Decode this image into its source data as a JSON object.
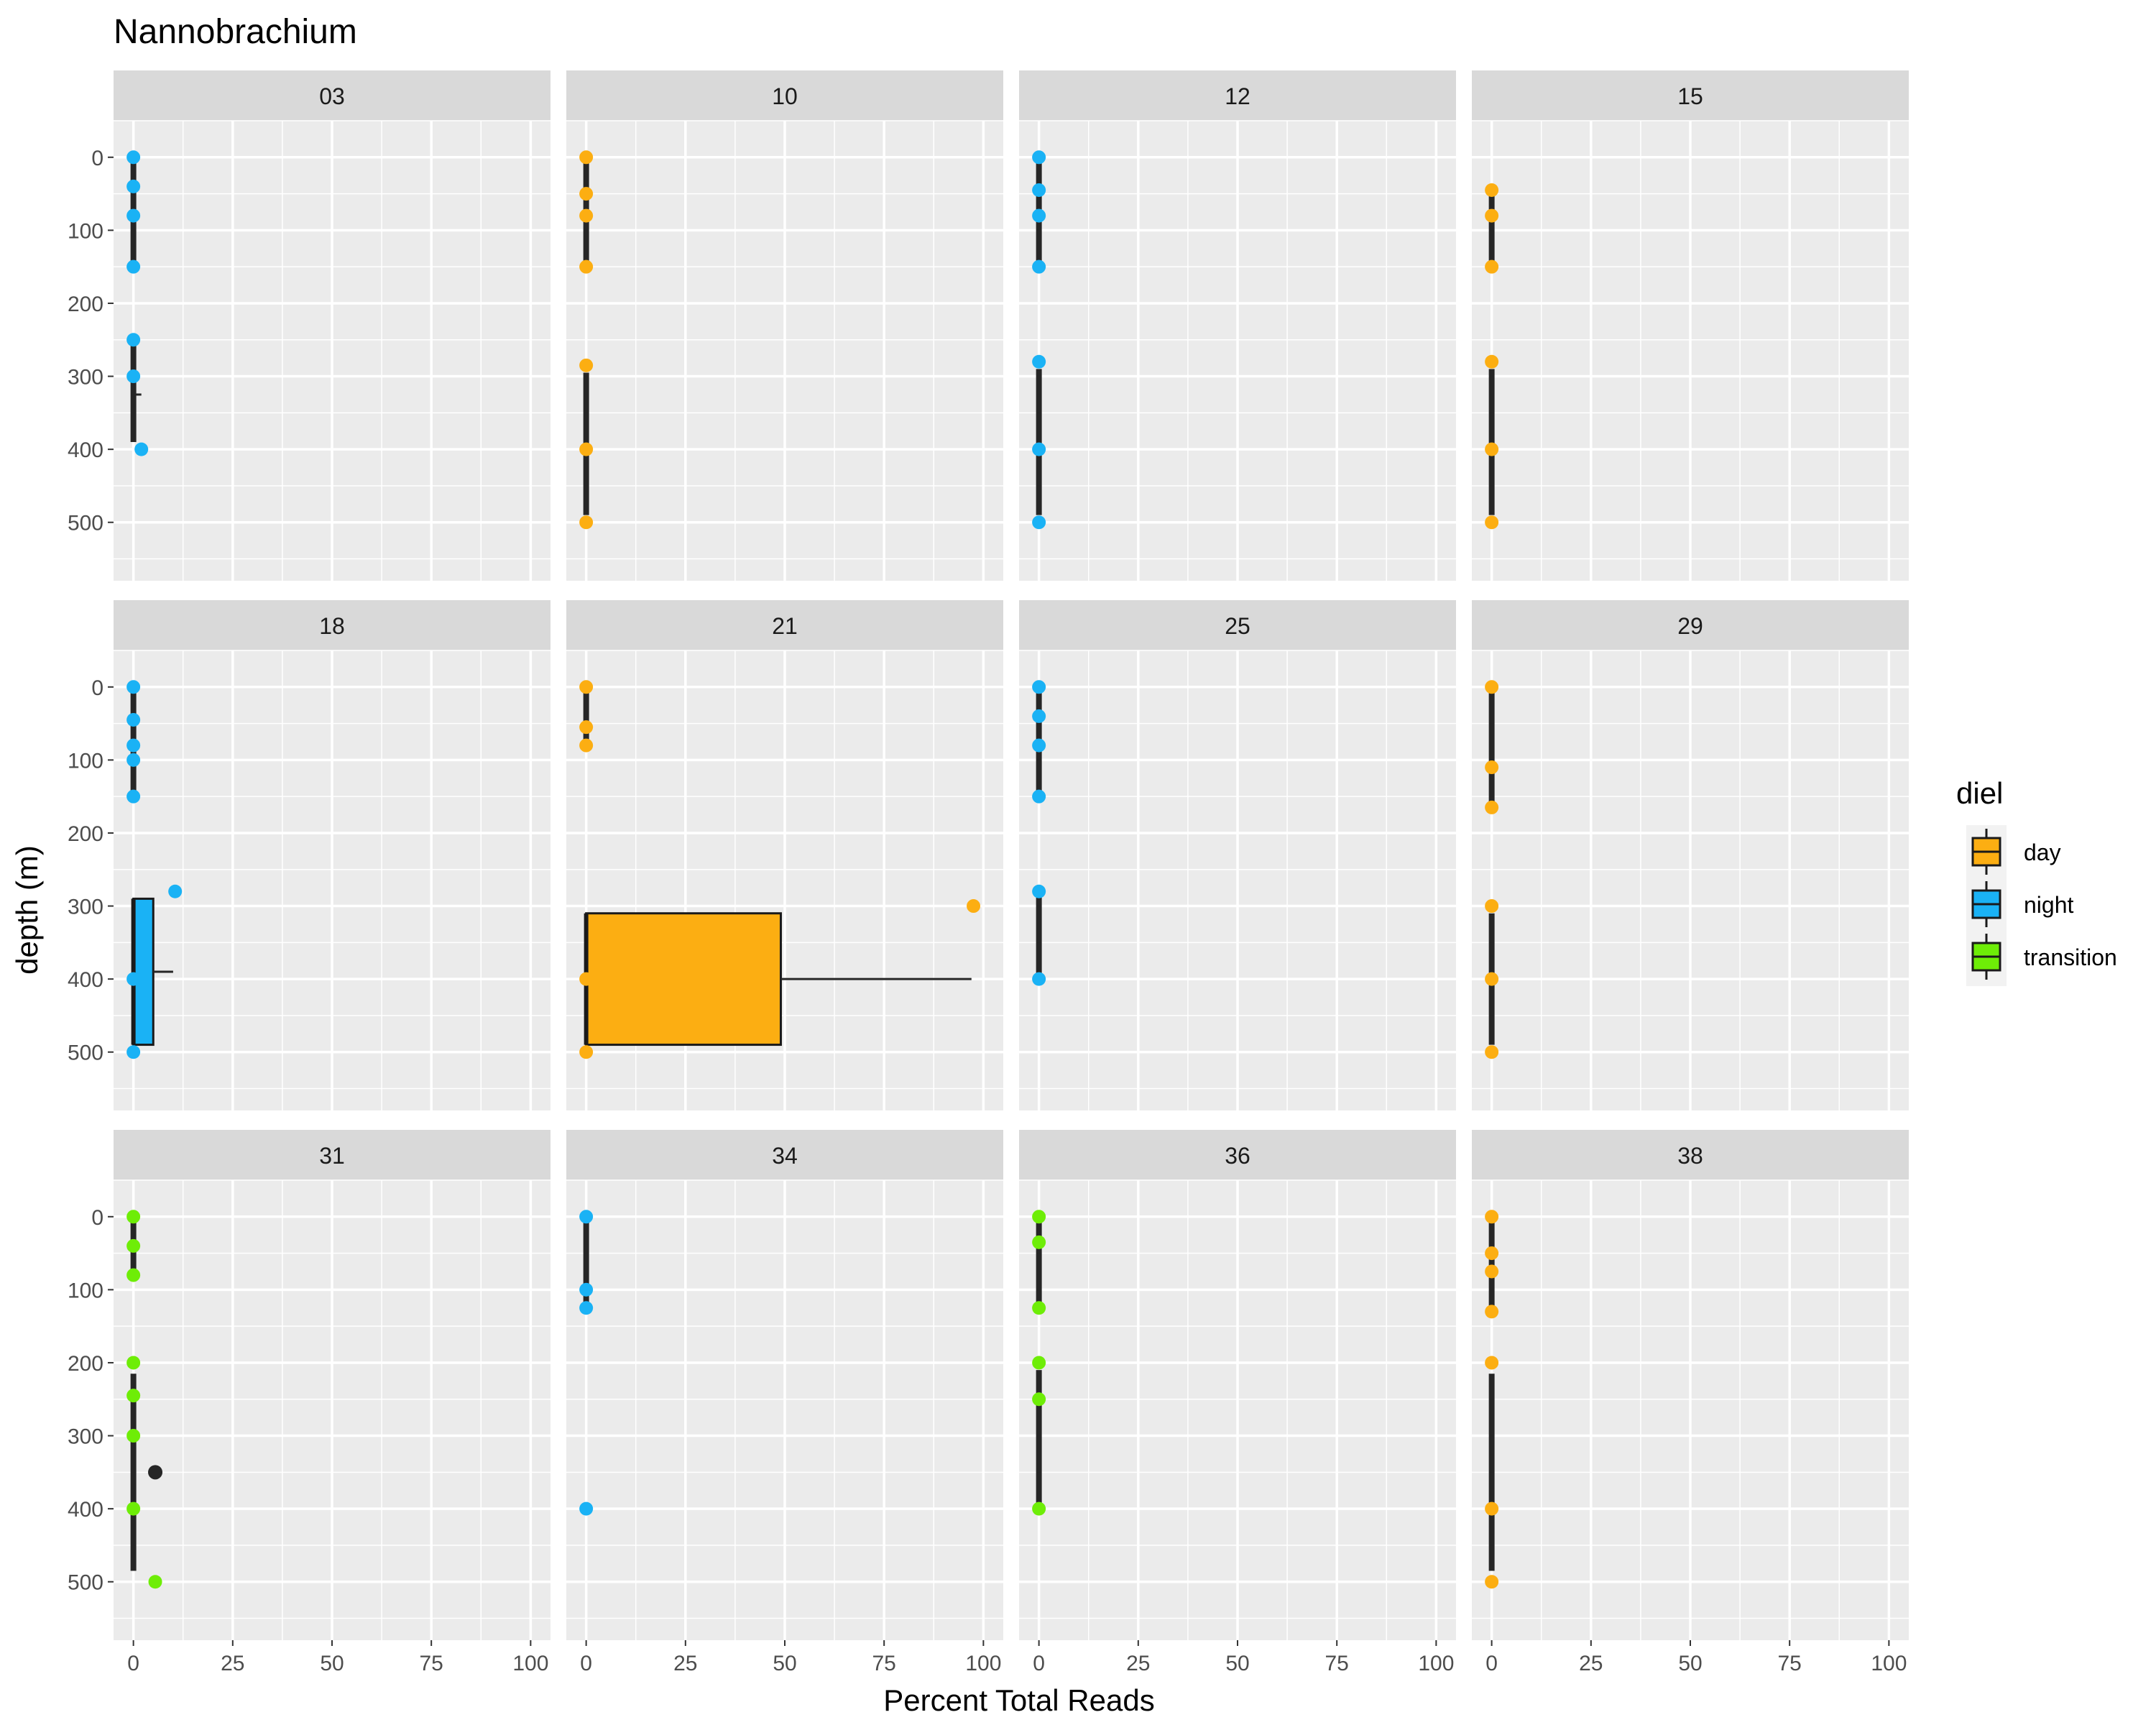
{
  "chart_data": {
    "type": "faceted-boxplot",
    "title": "Nannobrachium",
    "xlabel": "Percent Total Reads",
    "ylabel": "depth (m)",
    "xlim": [
      -5,
      105
    ],
    "ylim": [
      580,
      -50
    ],
    "xticks": [
      0,
      25,
      50,
      75,
      100
    ],
    "yticks": [
      0,
      100,
      200,
      300,
      400,
      500
    ],
    "grid": true,
    "legend": {
      "title": "diel",
      "placement": "right",
      "entries": [
        {
          "key": "day",
          "label": "day",
          "color": "#FCAE12"
        },
        {
          "key": "night",
          "label": "night",
          "color": "#1AB2F5"
        },
        {
          "key": "transition",
          "label": "transition",
          "color": "#6EED07"
        }
      ]
    },
    "outlier_color": "#262626",
    "facets": [
      {
        "label": "03",
        "boxes": [
          {
            "diel": "night",
            "group": 0,
            "q1": 0,
            "q3": 0,
            "median": 0,
            "whisker_low": 0,
            "whisker_high": 0,
            "y_top": 0,
            "y_bottom": 150
          },
          {
            "diel": "night",
            "group": 1,
            "q1": 0,
            "q3": 0,
            "median": 0,
            "whisker_low": 0,
            "whisker_high": 2,
            "y_top": 250,
            "y_bottom": 390,
            "median_depth": 325
          }
        ],
        "points": [
          {
            "x": 0,
            "y": 0,
            "diel": "night"
          },
          {
            "x": 0,
            "y": 40,
            "diel": "night"
          },
          {
            "x": 0,
            "y": 80,
            "diel": "night"
          },
          {
            "x": 0,
            "y": 150,
            "diel": "night"
          },
          {
            "x": 0,
            "y": 250,
            "diel": "night"
          },
          {
            "x": 0,
            "y": 300,
            "diel": "night"
          },
          {
            "x": 2,
            "y": 400,
            "diel": "night"
          }
        ],
        "outliers": []
      },
      {
        "label": "10",
        "boxes": [
          {
            "diel": "day",
            "group": 0,
            "q1": 0,
            "q3": 0,
            "median": 0,
            "whisker_low": 0,
            "whisker_high": 0,
            "y_top": 0,
            "y_bottom": 150
          },
          {
            "diel": "day",
            "group": 1,
            "q1": 0,
            "q3": 0,
            "median": 0,
            "whisker_low": 0,
            "whisker_high": 0,
            "y_top": 295,
            "y_bottom": 490
          }
        ],
        "points": [
          {
            "x": 0,
            "y": 0,
            "diel": "day"
          },
          {
            "x": 0,
            "y": 50,
            "diel": "day"
          },
          {
            "x": 0,
            "y": 80,
            "diel": "day"
          },
          {
            "x": 0,
            "y": 150,
            "diel": "day"
          },
          {
            "x": 0,
            "y": 285,
            "diel": "day"
          },
          {
            "x": 0,
            "y": 400,
            "diel": "day"
          },
          {
            "x": 0,
            "y": 500,
            "diel": "day"
          }
        ],
        "outliers": []
      },
      {
        "label": "12",
        "boxes": [
          {
            "diel": "night",
            "group": 0,
            "q1": 0,
            "q3": 0,
            "median": 0,
            "whisker_low": 0,
            "whisker_high": 0,
            "y_top": 0,
            "y_bottom": 150
          },
          {
            "diel": "night",
            "group": 1,
            "q1": 0,
            "q3": 0,
            "median": 0,
            "whisker_low": 0,
            "whisker_high": 0,
            "y_top": 290,
            "y_bottom": 490
          }
        ],
        "points": [
          {
            "x": 0,
            "y": 0,
            "diel": "night"
          },
          {
            "x": 0,
            "y": 45,
            "diel": "night"
          },
          {
            "x": 0,
            "y": 80,
            "diel": "night"
          },
          {
            "x": 0,
            "y": 150,
            "diel": "night"
          },
          {
            "x": 0,
            "y": 280,
            "diel": "night"
          },
          {
            "x": 0,
            "y": 400,
            "diel": "night"
          },
          {
            "x": 0,
            "y": 500,
            "diel": "night"
          }
        ],
        "outliers": []
      },
      {
        "label": "15",
        "boxes": [
          {
            "diel": "day",
            "group": 0,
            "q1": 0,
            "q3": 0,
            "median": 0,
            "whisker_low": 0,
            "whisker_high": 0,
            "y_top": 45,
            "y_bottom": 150
          },
          {
            "diel": "day",
            "group": 1,
            "q1": 0,
            "q3": 0,
            "median": 0,
            "whisker_low": 0,
            "whisker_high": 0,
            "y_top": 290,
            "y_bottom": 490
          }
        ],
        "points": [
          {
            "x": 0,
            "y": 45,
            "diel": "day"
          },
          {
            "x": 0,
            "y": 80,
            "diel": "day"
          },
          {
            "x": 0,
            "y": 150,
            "diel": "day"
          },
          {
            "x": 0,
            "y": 280,
            "diel": "day"
          },
          {
            "x": 0,
            "y": 400,
            "diel": "day"
          },
          {
            "x": 0,
            "y": 500,
            "diel": "day"
          }
        ],
        "outliers": []
      },
      {
        "label": "18",
        "boxes": [
          {
            "diel": "night",
            "group": 0,
            "q1": 0,
            "q3": 0,
            "median": 0,
            "whisker_low": 0,
            "whisker_high": 0,
            "y_top": 0,
            "y_bottom": 150
          },
          {
            "diel": "night",
            "group": 1,
            "q1": 0,
            "q3": 5,
            "median": 0,
            "whisker_low": 0,
            "whisker_high": 10,
            "y_top": 290,
            "y_bottom": 490,
            "median_depth": 390
          }
        ],
        "points": [
          {
            "x": 0,
            "y": 0,
            "diel": "night"
          },
          {
            "x": 0,
            "y": 45,
            "diel": "night"
          },
          {
            "x": 0,
            "y": 80,
            "diel": "night"
          },
          {
            "x": 0,
            "y": 100,
            "diel": "night"
          },
          {
            "x": 0,
            "y": 150,
            "diel": "night"
          },
          {
            "x": 10.5,
            "y": 280,
            "diel": "night"
          },
          {
            "x": 0,
            "y": 400,
            "diel": "night"
          },
          {
            "x": 0,
            "y": 500,
            "diel": "night"
          }
        ],
        "outliers": []
      },
      {
        "label": "21",
        "boxes": [
          {
            "diel": "day",
            "group": 0,
            "q1": 0,
            "q3": 0,
            "median": 0,
            "whisker_low": 0,
            "whisker_high": 0,
            "y_top": 0,
            "y_bottom": 80
          },
          {
            "diel": "day",
            "group": 1,
            "q1": 0,
            "q3": 49,
            "median": 0,
            "whisker_low": 0,
            "whisker_high": 97,
            "y_top": 310,
            "y_bottom": 490,
            "median_depth": 400
          }
        ],
        "points": [
          {
            "x": 0,
            "y": 0,
            "diel": "day"
          },
          {
            "x": 0,
            "y": 55,
            "diel": "day"
          },
          {
            "x": 0,
            "y": 80,
            "diel": "day"
          },
          {
            "x": 97.5,
            "y": 300,
            "diel": "day"
          },
          {
            "x": 0,
            "y": 400,
            "diel": "day"
          },
          {
            "x": 0,
            "y": 500,
            "diel": "day"
          }
        ],
        "outliers": []
      },
      {
        "label": "25",
        "boxes": [
          {
            "diel": "night",
            "group": 0,
            "q1": 0,
            "q3": 0,
            "median": 0,
            "whisker_low": 0,
            "whisker_high": 0,
            "y_top": 0,
            "y_bottom": 150
          },
          {
            "diel": "night",
            "group": 1,
            "q1": 0,
            "q3": 0,
            "median": 0,
            "whisker_low": 0,
            "whisker_high": 0,
            "y_top": 280,
            "y_bottom": 400
          }
        ],
        "points": [
          {
            "x": 0,
            "y": 0,
            "diel": "night"
          },
          {
            "x": 0,
            "y": 40,
            "diel": "night"
          },
          {
            "x": 0,
            "y": 80,
            "diel": "night"
          },
          {
            "x": 0,
            "y": 150,
            "diel": "night"
          },
          {
            "x": 0,
            "y": 280,
            "diel": "night"
          },
          {
            "x": 0,
            "y": 400,
            "diel": "night"
          }
        ],
        "outliers": []
      },
      {
        "label": "29",
        "boxes": [
          {
            "diel": "day",
            "group": 0,
            "q1": 0,
            "q3": 0,
            "median": 0,
            "whisker_low": 0,
            "whisker_high": 0,
            "y_top": 0,
            "y_bottom": 165
          },
          {
            "diel": "day",
            "group": 1,
            "q1": 0,
            "q3": 0,
            "median": 0,
            "whisker_low": 0,
            "whisker_high": 0,
            "y_top": 310,
            "y_bottom": 490
          }
        ],
        "points": [
          {
            "x": 0,
            "y": 0,
            "diel": "day"
          },
          {
            "x": 0,
            "y": 110,
            "diel": "day"
          },
          {
            "x": 0,
            "y": 165,
            "diel": "day"
          },
          {
            "x": 0,
            "y": 300,
            "diel": "day"
          },
          {
            "x": 0,
            "y": 400,
            "diel": "day"
          },
          {
            "x": 0,
            "y": 500,
            "diel": "day"
          }
        ],
        "outliers": []
      },
      {
        "label": "31",
        "boxes": [
          {
            "diel": "transition",
            "group": 0,
            "q1": 0,
            "q3": 0,
            "median": 0,
            "whisker_low": 0,
            "whisker_high": 0,
            "y_top": 0,
            "y_bottom": 80
          },
          {
            "diel": "transition",
            "group": 1,
            "q1": 0,
            "q3": 0,
            "median": 0,
            "whisker_low": 0,
            "whisker_high": 0,
            "y_top": 215,
            "y_bottom": 485
          }
        ],
        "points": [
          {
            "x": 0,
            "y": 0,
            "diel": "transition"
          },
          {
            "x": 0,
            "y": 40,
            "diel": "transition"
          },
          {
            "x": 0,
            "y": 80,
            "diel": "transition"
          },
          {
            "x": 0,
            "y": 200,
            "diel": "transition"
          },
          {
            "x": 0,
            "y": 245,
            "diel": "transition"
          },
          {
            "x": 0,
            "y": 300,
            "diel": "transition"
          },
          {
            "x": 0,
            "y": 400,
            "diel": "transition"
          },
          {
            "x": 5.5,
            "y": 500,
            "diel": "transition"
          }
        ],
        "outliers": [
          {
            "x": 5.5,
            "y": 350
          }
        ]
      },
      {
        "label": "34",
        "boxes": [
          {
            "diel": "night",
            "group": 0,
            "q1": 0,
            "q3": 0,
            "median": 0,
            "whisker_low": 0,
            "whisker_high": 0,
            "y_top": 0,
            "y_bottom": 125
          }
        ],
        "points": [
          {
            "x": 0,
            "y": 0,
            "diel": "night"
          },
          {
            "x": 0,
            "y": 100,
            "diel": "night"
          },
          {
            "x": 0,
            "y": 125,
            "diel": "night"
          },
          {
            "x": 0,
            "y": 400,
            "diel": "night"
          }
        ],
        "outliers": []
      },
      {
        "label": "36",
        "boxes": [
          {
            "diel": "transition",
            "group": 0,
            "q1": 0,
            "q3": 0,
            "median": 0,
            "whisker_low": 0,
            "whisker_high": 0,
            "y_top": 0,
            "y_bottom": 125
          },
          {
            "diel": "transition",
            "group": 1,
            "q1": 0,
            "q3": 0,
            "median": 0,
            "whisker_low": 0,
            "whisker_high": 0,
            "y_top": 210,
            "y_bottom": 395
          }
        ],
        "points": [
          {
            "x": 0,
            "y": 0,
            "diel": "transition"
          },
          {
            "x": 0,
            "y": 35,
            "diel": "transition"
          },
          {
            "x": 0,
            "y": 125,
            "diel": "transition"
          },
          {
            "x": 0,
            "y": 200,
            "diel": "transition"
          },
          {
            "x": 0,
            "y": 250,
            "diel": "transition"
          },
          {
            "x": 0,
            "y": 400,
            "diel": "transition"
          }
        ],
        "outliers": []
      },
      {
        "label": "38",
        "boxes": [
          {
            "diel": "day",
            "group": 0,
            "q1": 0,
            "q3": 0,
            "median": 0,
            "whisker_low": 0,
            "whisker_high": 0,
            "y_top": 0,
            "y_bottom": 130
          },
          {
            "diel": "day",
            "group": 1,
            "q1": 0,
            "q3": 0,
            "median": 0,
            "whisker_low": 0,
            "whisker_high": 0,
            "y_top": 215,
            "y_bottom": 485
          }
        ],
        "points": [
          {
            "x": 0,
            "y": 0,
            "diel": "day"
          },
          {
            "x": 0,
            "y": 50,
            "diel": "day"
          },
          {
            "x": 0,
            "y": 75,
            "diel": "day"
          },
          {
            "x": 0,
            "y": 130,
            "diel": "day"
          },
          {
            "x": 0,
            "y": 200,
            "diel": "day"
          },
          {
            "x": 0,
            "y": 400,
            "diel": "day"
          },
          {
            "x": 0,
            "y": 500,
            "diel": "day"
          }
        ],
        "outliers": []
      }
    ]
  }
}
